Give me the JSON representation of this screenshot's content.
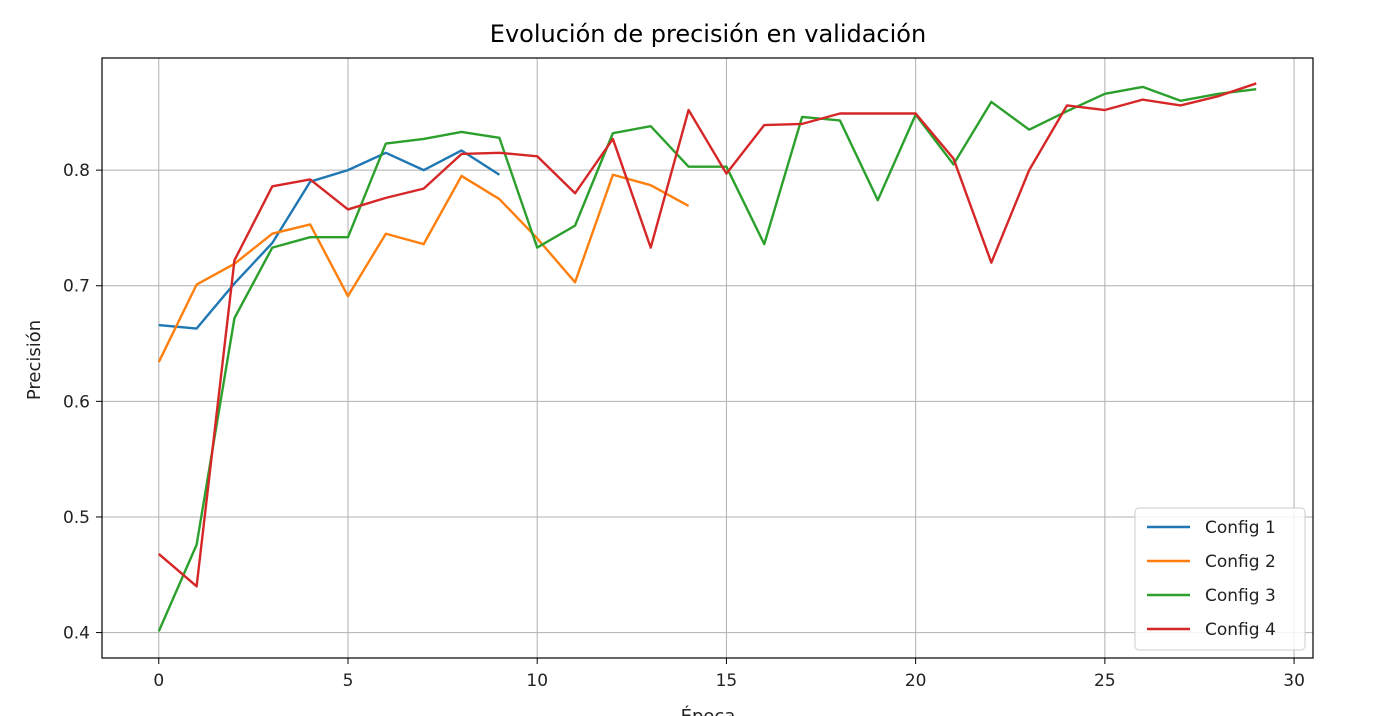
{
  "chart_data": {
    "type": "line",
    "title": "Evolución de precisión en validación",
    "xlabel": "Época",
    "ylabel": "Precisión",
    "xlim": [
      -1.5,
      30.5
    ],
    "ylim": [
      0.378,
      0.897
    ],
    "xticks": [
      0,
      5,
      10,
      15,
      20,
      25,
      30
    ],
    "xtick_labels": [
      "0",
      "5",
      "10",
      "15",
      "20",
      "25",
      "30"
    ],
    "yticks": [
      0.4,
      0.5,
      0.6,
      0.7,
      0.8
    ],
    "ytick_labels": [
      "0.4",
      "0.5",
      "0.6",
      "0.7",
      "0.8"
    ],
    "grid": true,
    "legend_position": "bottom-right",
    "series": [
      {
        "name": "Config 1",
        "color": "#1f77b4",
        "x": [
          0,
          1,
          2,
          3,
          4,
          5,
          6,
          7,
          8,
          9
        ],
        "values": [
          0.666,
          0.663,
          0.702,
          0.737,
          0.79,
          0.8,
          0.815,
          0.8,
          0.817,
          0.796
        ]
      },
      {
        "name": "Config 2",
        "color": "#ff7f0e",
        "x": [
          0,
          1,
          2,
          3,
          4,
          5,
          6,
          7,
          8,
          9,
          10,
          11,
          12,
          13,
          14
        ],
        "values": [
          0.634,
          0.701,
          0.719,
          0.745,
          0.753,
          0.691,
          0.745,
          0.736,
          0.795,
          0.775,
          0.741,
          0.703,
          0.796,
          0.787,
          0.769
        ]
      },
      {
        "name": "Config 3",
        "color": "#2ca02c",
        "x": [
          0,
          1,
          2,
          3,
          4,
          5,
          6,
          7,
          8,
          9,
          10,
          11,
          12,
          13,
          14,
          15,
          16,
          17,
          18,
          19,
          20,
          21,
          22,
          23,
          24,
          25,
          26,
          27,
          28,
          29
        ],
        "values": [
          0.401,
          0.476,
          0.672,
          0.733,
          0.742,
          0.742,
          0.823,
          0.827,
          0.833,
          0.828,
          0.733,
          0.752,
          0.832,
          0.838,
          0.803,
          0.803,
          0.736,
          0.846,
          0.843,
          0.774,
          0.848,
          0.805,
          0.859,
          0.835,
          0.851,
          0.866,
          0.872,
          0.86,
          0.866,
          0.87
        ]
      },
      {
        "name": "Config 4",
        "color": "#d62728",
        "x": [
          0,
          1,
          2,
          3,
          4,
          5,
          6,
          7,
          8,
          9,
          10,
          11,
          12,
          13,
          14,
          15,
          16,
          17,
          18,
          19,
          20,
          21,
          22,
          23,
          24,
          25,
          26,
          27,
          28,
          29
        ],
        "values": [
          0.468,
          0.44,
          0.722,
          0.786,
          0.792,
          0.766,
          0.776,
          0.784,
          0.814,
          0.815,
          0.812,
          0.78,
          0.827,
          0.733,
          0.852,
          0.797,
          0.839,
          0.84,
          0.849,
          0.849,
          0.849,
          0.81,
          0.72,
          0.8,
          0.856,
          0.852,
          0.861,
          0.856,
          0.864,
          0.875
        ]
      }
    ]
  }
}
